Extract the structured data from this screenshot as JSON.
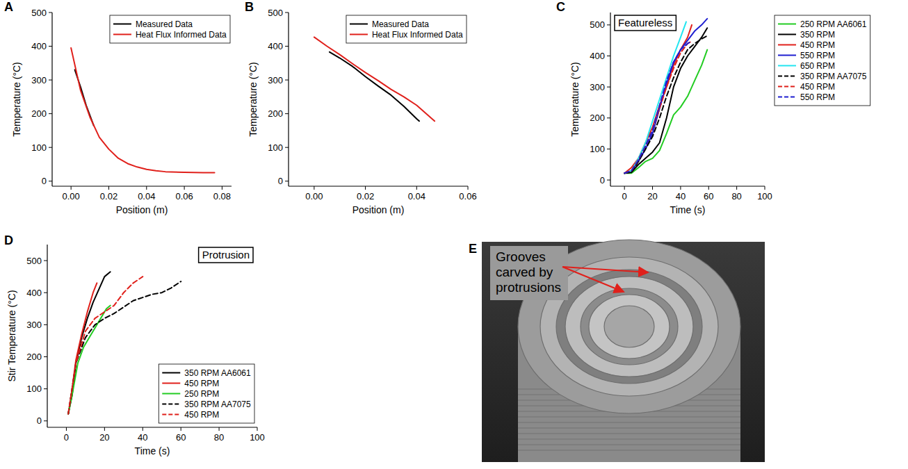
{
  "chart_data": [
    {
      "type": "line",
      "panel": "A",
      "x_label": "Position (m)",
      "y_label": "Temperature (°C)",
      "xlim": [
        -0.01,
        0.085
      ],
      "ylim": [
        -15,
        500
      ],
      "xticks": [
        {
          "value": 0,
          "label": "0.00"
        },
        {
          "value": 0.02,
          "label": "0.02"
        },
        {
          "value": 0.04,
          "label": "0.04"
        },
        {
          "value": 0.06,
          "label": "0.06"
        },
        {
          "value": 0.08,
          "label": "0.08"
        }
      ],
      "yticks": [
        0,
        100,
        200,
        300,
        400,
        500
      ],
      "legend": "upper right",
      "series": [
        {
          "name": "Measured Data",
          "color": "#000000",
          "line_style": "solid",
          "x": [
            0.002,
            0.005,
            0.008,
            0.012
          ],
          "values": [
            330,
            280,
            225,
            165
          ]
        },
        {
          "name": "Heat Flux Informed Data",
          "color": "#e0201b",
          "line_style": "solid",
          "x": [
            0,
            0.005,
            0.01,
            0.015,
            0.02,
            0.025,
            0.03,
            0.035,
            0.04,
            0.045,
            0.05,
            0.06,
            0.07,
            0.076
          ],
          "values": [
            395,
            270,
            190,
            130,
            95,
            68,
            52,
            42,
            35,
            31,
            28,
            26,
            25,
            25
          ]
        }
      ]
    },
    {
      "type": "line",
      "panel": "B",
      "x_label": "Position (m)",
      "y_label": "Temperature (°C)",
      "xlim": [
        -0.01,
        0.06
      ],
      "ylim": [
        -15,
        500
      ],
      "xticks": [
        {
          "value": 0,
          "label": "0.00"
        },
        {
          "value": 0.02,
          "label": "0.02"
        },
        {
          "value": 0.04,
          "label": "0.04"
        },
        {
          "value": 0.06,
          "label": "0.06"
        }
      ],
      "yticks": [
        0,
        100,
        200,
        300,
        400,
        500
      ],
      "legend": "upper right",
      "series": [
        {
          "name": "Measured Data",
          "color": "#000000",
          "line_style": "solid",
          "x": [
            0.006,
            0.01,
            0.015,
            0.02,
            0.025,
            0.03,
            0.035,
            0.04,
            0.041
          ],
          "values": [
            383,
            365,
            340,
            310,
            282,
            255,
            222,
            185,
            178
          ]
        },
        {
          "name": "Heat Flux Informed Data",
          "color": "#e0201b",
          "line_style": "solid",
          "x": [
            0,
            0.005,
            0.01,
            0.015,
            0.02,
            0.025,
            0.03,
            0.035,
            0.04,
            0.047
          ],
          "values": [
            427,
            400,
            375,
            348,
            322,
            298,
            272,
            250,
            225,
            178
          ]
        }
      ]
    },
    {
      "type": "line",
      "panel": "C",
      "annotation": "Featureless",
      "x_label": "Time (s)",
      "y_label": "Temperature (°C)",
      "xlim": [
        -10,
        100
      ],
      "ylim": [
        -20,
        540
      ],
      "xticks": [
        0,
        20,
        40,
        60,
        80,
        100
      ],
      "yticks": [
        0,
        100,
        200,
        300,
        400,
        500
      ],
      "legend": "right",
      "series": [
        {
          "name": "250 RPM AA6061",
          "color": "#22cc22",
          "line_style": "solid",
          "x": [
            0,
            5,
            10,
            15,
            20,
            25,
            30,
            35,
            40,
            45,
            50,
            55,
            59
          ],
          "values": [
            22,
            22,
            40,
            60,
            70,
            95,
            150,
            210,
            235,
            270,
            320,
            370,
            420
          ]
        },
        {
          "name": "350 RPM",
          "color": "#000000",
          "line_style": "solid",
          "x": [
            0,
            5,
            10,
            15,
            20,
            25,
            30,
            35,
            40,
            45,
            50,
            55,
            59
          ],
          "values": [
            22,
            25,
            50,
            70,
            90,
            120,
            200,
            300,
            360,
            400,
            430,
            460,
            490
          ]
        },
        {
          "name": "450 RPM",
          "color": "#e0201b",
          "line_style": "solid",
          "x": [
            0,
            5,
            10,
            15,
            20,
            25,
            30,
            35,
            40,
            45,
            48
          ],
          "values": [
            22,
            40,
            70,
            120,
            170,
            240,
            300,
            370,
            420,
            460,
            500
          ]
        },
        {
          "name": "550 RPM",
          "color": "#1f1fd0",
          "line_style": "solid",
          "x": [
            0,
            5,
            10,
            15,
            20,
            25,
            30,
            35,
            40,
            45,
            50,
            55,
            59
          ],
          "values": [
            22,
            30,
            60,
            100,
            150,
            230,
            310,
            380,
            420,
            450,
            480,
            500,
            520
          ]
        },
        {
          "name": "650 RPM",
          "color": "#22e5f0",
          "line_style": "solid",
          "x": [
            0,
            5,
            10,
            15,
            20,
            25,
            30,
            35,
            40,
            44
          ],
          "values": [
            22,
            30,
            70,
            120,
            190,
            260,
            330,
            400,
            460,
            510
          ]
        },
        {
          "name": "350 RPM AA7075",
          "color": "#000000",
          "line_style": "dashed",
          "x": [
            0,
            5,
            10,
            15,
            20,
            25,
            30,
            35,
            40,
            45,
            50,
            55,
            59
          ],
          "values": [
            22,
            25,
            60,
            100,
            140,
            200,
            270,
            330,
            380,
            420,
            440,
            455,
            465
          ]
        },
        {
          "name": "450 RPM",
          "color": "#e0201b",
          "line_style": "dashed",
          "x": [
            0,
            5,
            10,
            15,
            20,
            25,
            30,
            35,
            40,
            45,
            47
          ],
          "values": [
            22,
            30,
            65,
            110,
            160,
            230,
            300,
            360,
            410,
            440,
            445
          ]
        },
        {
          "name": "550 RPM",
          "color": "#1f1fd0",
          "line_style": "dashed",
          "x": [
            0,
            5,
            10,
            15,
            20,
            25,
            30,
            35,
            40,
            45,
            47
          ],
          "values": [
            22,
            30,
            65,
            110,
            160,
            240,
            320,
            380,
            420,
            440,
            445
          ]
        }
      ]
    },
    {
      "type": "line",
      "panel": "D",
      "annotation": "Protrusion",
      "x_label": "Time (s)",
      "y_label": "Stir Temperature (°C)",
      "xlim": [
        -10,
        100
      ],
      "ylim": [
        -20,
        550
      ],
      "xticks": [
        0,
        20,
        40,
        60,
        80,
        100
      ],
      "yticks": [
        0,
        100,
        200,
        300,
        400,
        500
      ],
      "legend": "lower right",
      "series": [
        {
          "name": "350 RPM AA6061",
          "color": "#000000",
          "line_style": "solid",
          "x": [
            1,
            3,
            5,
            8,
            11,
            14,
            17,
            20,
            23
          ],
          "values": [
            22,
            80,
            180,
            260,
            320,
            370,
            410,
            450,
            465
          ]
        },
        {
          "name": "450 RPM",
          "color": "#e0201b",
          "line_style": "solid",
          "x": [
            1,
            3,
            5,
            8,
            11,
            14,
            16
          ],
          "values": [
            22,
            100,
            190,
            270,
            340,
            400,
            430
          ]
        },
        {
          "name": "250 RPM",
          "color": "#22cc22",
          "line_style": "solid",
          "x": [
            1,
            3,
            6,
            9,
            12,
            15,
            18,
            21,
            23
          ],
          "values": [
            22,
            80,
            180,
            230,
            260,
            290,
            320,
            350,
            360
          ]
        },
        {
          "name": "350 RPM AA7075",
          "color": "#000000",
          "line_style": "dashed",
          "x": [
            1,
            3,
            5,
            10,
            15,
            20,
            25,
            30,
            35,
            40,
            45,
            50,
            55,
            60
          ],
          "values": [
            22,
            100,
            180,
            260,
            300,
            320,
            335,
            355,
            375,
            385,
            395,
            400,
            415,
            435
          ]
        },
        {
          "name": "450 RPM",
          "color": "#e0201b",
          "line_style": "dashed",
          "x": [
            1,
            3,
            5,
            10,
            15,
            20,
            25,
            30,
            35,
            40
          ],
          "values": [
            22,
            100,
            180,
            280,
            320,
            340,
            360,
            400,
            430,
            450
          ]
        }
      ]
    }
  ],
  "photo": {
    "panel": "E",
    "annotation": "Grooves carved by protrusions"
  }
}
